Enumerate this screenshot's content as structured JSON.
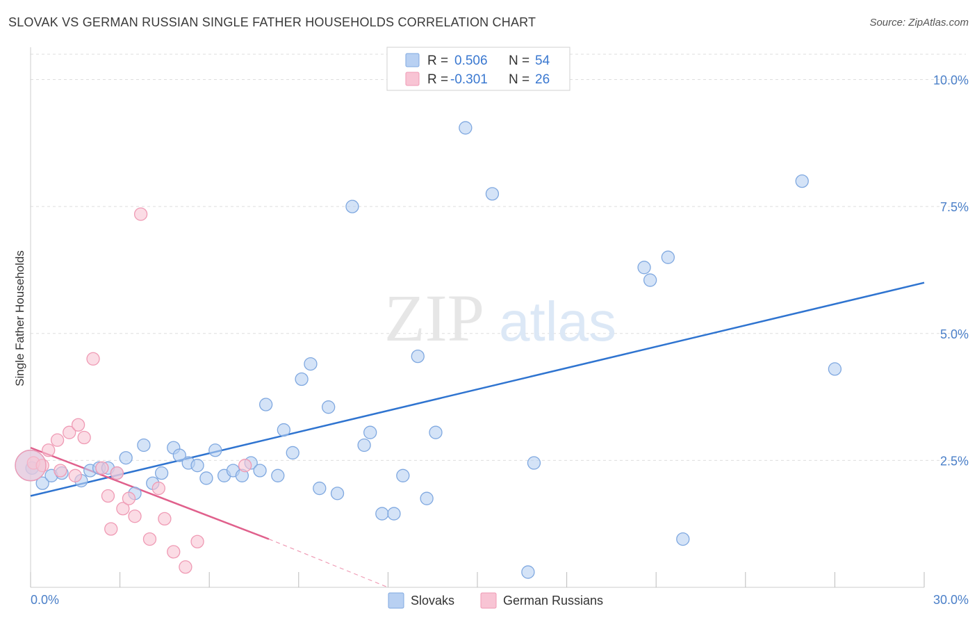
{
  "title": "SLOVAK VS GERMAN RUSSIAN SINGLE FATHER HOUSEHOLDS CORRELATION CHART",
  "source": "Source: ZipAtlas.com",
  "watermark": {
    "zip": "ZIP",
    "atlas": "atlas"
  },
  "colors": {
    "slovak_fill": "#b8d0f2",
    "slovak_stroke": "#7fa8e0",
    "slovak_line": "#2f74d0",
    "german_fill": "#f8c4d4",
    "german_stroke": "#ef9ab4",
    "german_line": "#e0608c",
    "tick_label": "#4a7fc8",
    "grid": "#dddddd"
  },
  "legend": {
    "rows": [
      {
        "r_label": "R =",
        "r_value": "0.506",
        "n_label": "N =",
        "n_value": "54"
      },
      {
        "r_label": "R =",
        "r_value": "-0.301",
        "n_label": "N =",
        "n_value": "26"
      }
    ]
  },
  "chart_data": {
    "type": "scatter",
    "title": "SLOVAK VS GERMAN RUSSIAN SINGLE FATHER HOUSEHOLDS CORRELATION CHART",
    "xlabel": "",
    "ylabel": "Single Father Households",
    "xlim": [
      0,
      30
    ],
    "ylim": [
      0,
      10.5
    ],
    "x_tick_labels": [
      "0.0%",
      "30.0%"
    ],
    "y_ticks": [
      2.5,
      5.0,
      7.5,
      10.0
    ],
    "y_tick_labels": [
      "2.5%",
      "5.0%",
      "7.5%",
      "10.0%"
    ],
    "grid": true,
    "legend_position": "top-center",
    "series": [
      {
        "name": "Slovaks",
        "points": [
          [
            0.05,
            2.35
          ],
          [
            0.4,
            2.05
          ],
          [
            0.7,
            2.2
          ],
          [
            1.05,
            2.25
          ],
          [
            1.7,
            2.1
          ],
          [
            2.0,
            2.3
          ],
          [
            2.3,
            2.35
          ],
          [
            2.6,
            2.35
          ],
          [
            2.9,
            2.25
          ],
          [
            3.2,
            2.55
          ],
          [
            3.5,
            1.85
          ],
          [
            3.8,
            2.8
          ],
          [
            4.1,
            2.05
          ],
          [
            4.4,
            2.25
          ],
          [
            4.8,
            2.75
          ],
          [
            5.0,
            2.6
          ],
          [
            5.3,
            2.45
          ],
          [
            5.6,
            2.4
          ],
          [
            5.9,
            2.15
          ],
          [
            6.2,
            2.7
          ],
          [
            6.5,
            2.2
          ],
          [
            6.8,
            2.3
          ],
          [
            7.1,
            2.2
          ],
          [
            7.4,
            2.45
          ],
          [
            7.7,
            2.3
          ],
          [
            7.9,
            3.6
          ],
          [
            8.3,
            2.2
          ],
          [
            8.5,
            3.1
          ],
          [
            8.8,
            2.65
          ],
          [
            9.1,
            4.1
          ],
          [
            9.4,
            4.4
          ],
          [
            9.7,
            1.95
          ],
          [
            10.0,
            3.55
          ],
          [
            10.3,
            1.85
          ],
          [
            10.8,
            7.5
          ],
          [
            11.2,
            2.8
          ],
          [
            11.4,
            3.05
          ],
          [
            11.8,
            1.45
          ],
          [
            12.2,
            1.45
          ],
          [
            12.5,
            2.2
          ],
          [
            13.0,
            4.55
          ],
          [
            13.3,
            1.75
          ],
          [
            13.6,
            3.05
          ],
          [
            14.6,
            9.05
          ],
          [
            15.5,
            7.75
          ],
          [
            16.7,
            0.3
          ],
          [
            16.9,
            2.45
          ],
          [
            20.6,
            6.3
          ],
          [
            20.8,
            6.05
          ],
          [
            21.4,
            6.5
          ],
          [
            21.9,
            0.95
          ],
          [
            25.9,
            8.0
          ],
          [
            27.0,
            4.3
          ],
          [
            0.0,
            2.4
          ]
        ],
        "trend": {
          "x": [
            0,
            30
          ],
          "y": [
            1.8,
            6.0
          ]
        }
      },
      {
        "name": "German Russians",
        "points": [
          [
            0.1,
            2.45
          ],
          [
            0.4,
            2.4
          ],
          [
            0.6,
            2.7
          ],
          [
            0.9,
            2.9
          ],
          [
            1.0,
            2.3
          ],
          [
            1.3,
            3.05
          ],
          [
            1.5,
            2.2
          ],
          [
            1.6,
            3.2
          ],
          [
            1.8,
            2.95
          ],
          [
            2.1,
            4.5
          ],
          [
            2.4,
            2.35
          ],
          [
            2.6,
            1.8
          ],
          [
            2.7,
            1.15
          ],
          [
            2.9,
            2.25
          ],
          [
            3.1,
            1.55
          ],
          [
            3.3,
            1.75
          ],
          [
            3.5,
            1.4
          ],
          [
            3.7,
            7.35
          ],
          [
            4.0,
            0.95
          ],
          [
            4.3,
            1.95
          ],
          [
            4.5,
            1.35
          ],
          [
            4.8,
            0.7
          ],
          [
            5.2,
            0.4
          ],
          [
            5.6,
            0.9
          ],
          [
            7.2,
            2.4
          ],
          [
            0.0,
            2.4
          ]
        ],
        "trend": {
          "x": [
            0,
            8
          ],
          "y": [
            2.75,
            0.95
          ],
          "dashed_to": {
            "x": 12,
            "y": 0.0
          }
        }
      }
    ]
  }
}
